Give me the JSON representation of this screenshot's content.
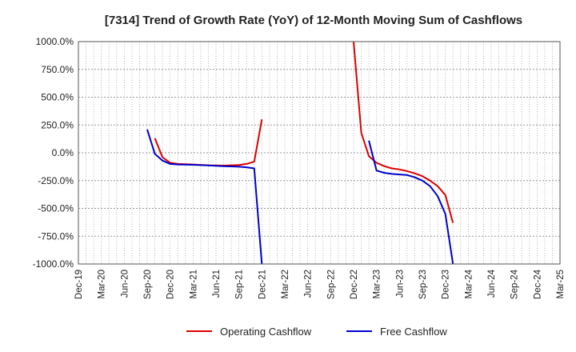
{
  "chart_data": {
    "type": "line",
    "title": "[7314]  Trend of Growth Rate (YoY) of 12-Month Moving Sum of Cashflows",
    "xlabel": "",
    "ylabel": "",
    "y_unit": "%",
    "ylim": [
      -1000,
      1000
    ],
    "yticks": [
      1000,
      750,
      500,
      250,
      0,
      -250,
      -500,
      -750,
      -1000
    ],
    "ytick_labels": [
      "1000.0%",
      "750.0%",
      "500.0%",
      "250.0%",
      "0.0%",
      "-250.0%",
      "-500.0%",
      "-750.0%",
      "-1000.0%"
    ],
    "x_range": [
      "2019-12",
      "2025-03"
    ],
    "xtick_labels": [
      "Dec-19",
      "Mar-20",
      "Jun-20",
      "Sep-20",
      "Dec-20",
      "Mar-21",
      "Jun-21",
      "Sep-21",
      "Dec-21",
      "Mar-22",
      "Jun-22",
      "Sep-22",
      "Dec-22",
      "Mar-23",
      "Jun-23",
      "Sep-23",
      "Dec-23",
      "Mar-24",
      "Jun-24",
      "Sep-24",
      "Dec-24",
      "Mar-25"
    ],
    "grid": true,
    "legend_position": "bottom",
    "series": [
      {
        "name": "Operating Cashflow",
        "color": "#dd0000",
        "segments": [
          [
            [
              "2020-10",
              130
            ],
            [
              "2020-11",
              -40
            ],
            [
              "2020-12",
              -90
            ],
            [
              "2021-01",
              -100
            ],
            [
              "2021-03",
              -105
            ],
            [
              "2021-05",
              -112
            ],
            [
              "2021-07",
              -115
            ],
            [
              "2021-09",
              -110
            ],
            [
              "2021-10",
              -100
            ],
            [
              "2021-11",
              -80
            ],
            [
              "2021-12",
              300
            ]
          ],
          [
            [
              "2022-12",
              1000
            ],
            [
              "2023-01",
              180
            ],
            [
              "2023-02",
              -30
            ],
            [
              "2023-03",
              -90
            ],
            [
              "2023-04",
              -120
            ],
            [
              "2023-05",
              -140
            ],
            [
              "2023-06",
              -150
            ],
            [
              "2023-07",
              -165
            ],
            [
              "2023-08",
              -185
            ],
            [
              "2023-09",
              -210
            ],
            [
              "2023-10",
              -250
            ],
            [
              "2023-11",
              -300
            ],
            [
              "2023-12",
              -380
            ],
            [
              "2024-01",
              -630
            ]
          ]
        ]
      },
      {
        "name": "Free Cashflow",
        "color": "#0000cc",
        "segments": [
          [
            [
              "2020-09",
              210
            ],
            [
              "2020-10",
              -10
            ],
            [
              "2020-11",
              -70
            ],
            [
              "2020-12",
              -100
            ],
            [
              "2021-01",
              -105
            ],
            [
              "2021-03",
              -108
            ],
            [
              "2021-05",
              -113
            ],
            [
              "2021-07",
              -120
            ],
            [
              "2021-09",
              -125
            ],
            [
              "2021-10",
              -130
            ],
            [
              "2021-11",
              -140
            ],
            [
              "2021-12",
              -1000
            ]
          ],
          [
            [
              "2023-02",
              110
            ],
            [
              "2023-03",
              -160
            ],
            [
              "2023-04",
              -180
            ],
            [
              "2023-05",
              -190
            ],
            [
              "2023-06",
              -195
            ],
            [
              "2023-07",
              -200
            ],
            [
              "2023-08",
              -220
            ],
            [
              "2023-09",
              -250
            ],
            [
              "2023-10",
              -300
            ],
            [
              "2023-11",
              -390
            ],
            [
              "2023-12",
              -550
            ],
            [
              "2024-01",
              -1000
            ]
          ]
        ]
      }
    ]
  }
}
